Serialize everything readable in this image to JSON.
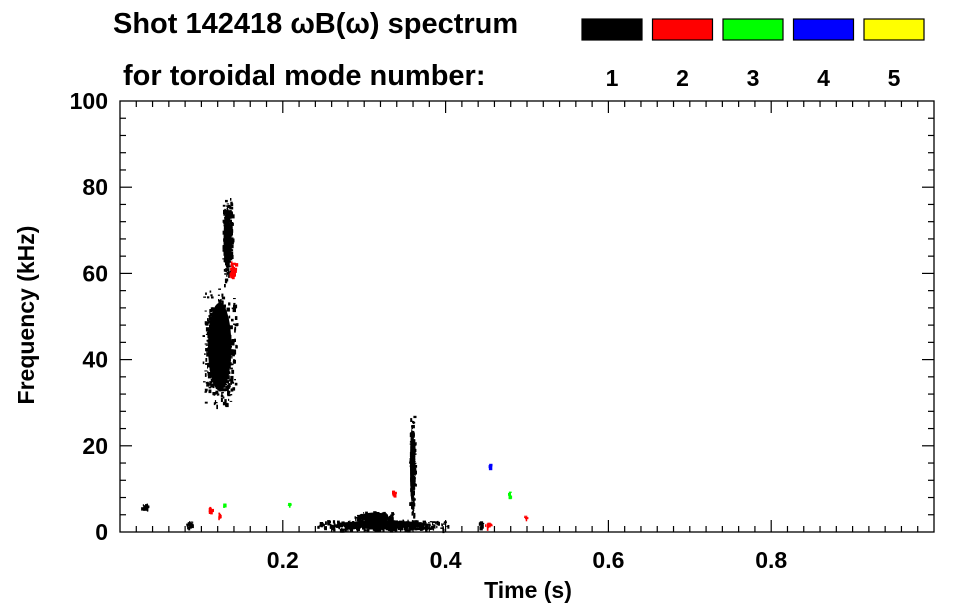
{
  "chart_data": {
    "type": "heatmap",
    "title": "Shot 142418 ωB(ω) spectrum",
    "subtitle": "for toroidal mode number:",
    "xlabel": "Time (s)",
    "ylabel": "Frequency (kHz)",
    "xlim": [
      0.0,
      1.0
    ],
    "ylim": [
      0,
      100
    ],
    "x_ticks": [
      0.2,
      0.4,
      0.6,
      0.8
    ],
    "x_tick_labels": [
      "0.2",
      "0.4",
      "0.6",
      "0.8"
    ],
    "y_ticks": [
      0,
      20,
      40,
      60,
      80,
      100
    ],
    "y_tick_labels": [
      "0",
      "20",
      "40",
      "60",
      "80",
      "100"
    ],
    "grid": false,
    "legend": {
      "placement": "top-right",
      "entries": [
        {
          "label": "1",
          "color": "#000000"
        },
        {
          "label": "2",
          "color": "#ff0000"
        },
        {
          "label": "3",
          "color": "#00ff00"
        },
        {
          "label": "4",
          "color": "#0000ff"
        },
        {
          "label": "5",
          "color": "#ffff00"
        }
      ]
    },
    "series": [
      {
        "name": "1",
        "color": "#000000",
        "regions": [
          {
            "t": [
              0.1,
              0.145
            ],
            "f": [
              28,
              58
            ]
          },
          {
            "t": [
              0.125,
              0.138
            ],
            "f": [
              58,
              78
            ]
          },
          {
            "t": [
              0.235,
              0.41
            ],
            "f": [
              0.5,
              3
            ]
          },
          {
            "t": [
              0.285,
              0.34
            ],
            "f": [
              2,
              5
            ]
          },
          {
            "t": [
              0.355,
              0.362
            ],
            "f": [
              3,
              28
            ]
          },
          {
            "t": [
              0.08,
              0.09
            ],
            "f": [
              1,
              3
            ]
          },
          {
            "t": [
              0.025,
              0.035
            ],
            "f": [
              5,
              7
            ]
          },
          {
            "t": [
              0.44,
              0.445
            ],
            "f": [
              1,
              3
            ]
          }
        ]
      },
      {
        "name": "2",
        "color": "#ff0000",
        "regions": [
          {
            "t": [
              0.133,
              0.142
            ],
            "f": [
              59,
              63
            ]
          },
          {
            "t": [
              0.108,
              0.113
            ],
            "f": [
              4.5,
              6
            ]
          },
          {
            "t": [
              0.12,
              0.123
            ],
            "f": [
              3,
              5
            ]
          },
          {
            "t": [
              0.333,
              0.337
            ],
            "f": [
              8,
              10
            ]
          },
          {
            "t": [
              0.448,
              0.455
            ],
            "f": [
              1,
              2.5
            ]
          },
          {
            "t": [
              0.496,
              0.499
            ],
            "f": [
              3,
              4
            ]
          }
        ]
      },
      {
        "name": "3",
        "color": "#00ff00",
        "regions": [
          {
            "t": [
              0.125,
              0.128
            ],
            "f": [
              6,
              7
            ]
          },
          {
            "t": [
              0.205,
              0.208
            ],
            "f": [
              6,
              7
            ]
          },
          {
            "t": [
              0.476,
              0.478
            ],
            "f": [
              8,
              10
            ]
          }
        ]
      },
      {
        "name": "4",
        "color": "#0000ff",
        "regions": [
          {
            "t": [
              0.452,
              0.455
            ],
            "f": [
              15,
              16
            ]
          }
        ]
      },
      {
        "name": "5",
        "color": "#ffff00",
        "regions": []
      }
    ]
  }
}
